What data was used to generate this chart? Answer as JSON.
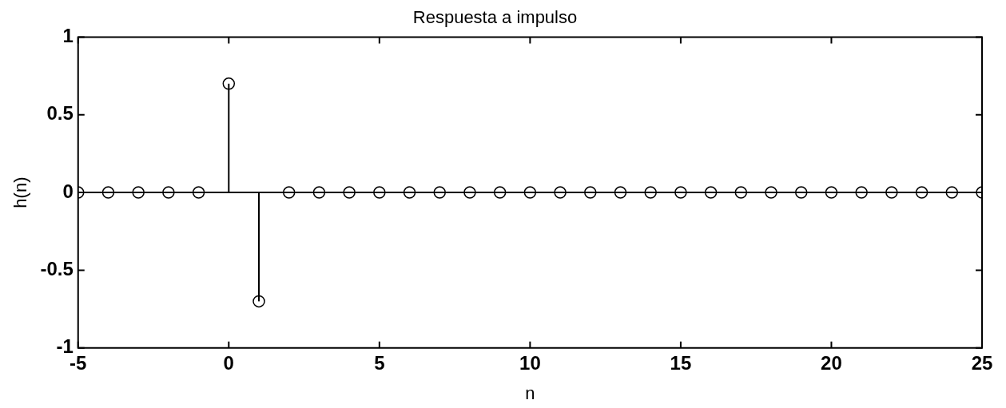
{
  "chart_data": {
    "type": "lollipop",
    "title": "Respuesta a impulso",
    "xlabel": "n",
    "ylabel": "h(n)",
    "x": [
      -5,
      -4,
      -3,
      -2,
      -1,
      0,
      1,
      2,
      3,
      4,
      5,
      6,
      7,
      8,
      9,
      10,
      11,
      12,
      13,
      14,
      15,
      16,
      17,
      18,
      19,
      20,
      21,
      22,
      23,
      24,
      25
    ],
    "values": [
      0,
      0,
      0,
      0,
      0,
      0.7,
      -0.7,
      0,
      0,
      0,
      0,
      0,
      0,
      0,
      0,
      0,
      0,
      0,
      0,
      0,
      0,
      0,
      0,
      0,
      0,
      0,
      0,
      0,
      0,
      0,
      0
    ],
    "color": "#000000",
    "marker": "circle",
    "xlim": [
      -5,
      25
    ],
    "xticks": [
      -5,
      0,
      5,
      10,
      15,
      20,
      25
    ],
    "ylim": [
      -1,
      1
    ],
    "yticks": [
      -1,
      -0.5,
      0,
      0.5,
      1
    ]
  }
}
